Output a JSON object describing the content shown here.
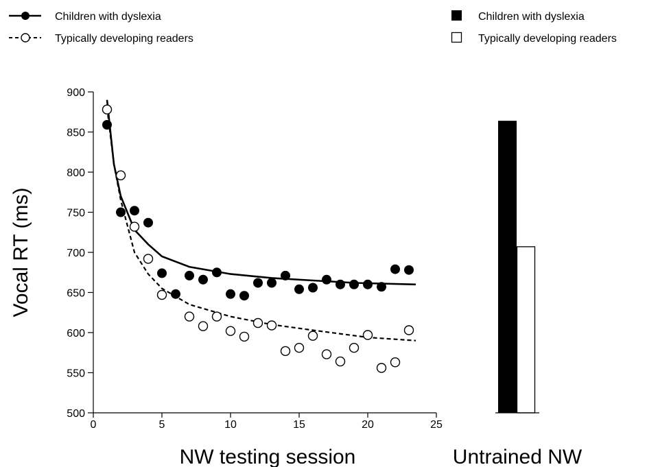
{
  "legend_left": [
    {
      "label": "Children with dyslexia",
      "style": "solid-filled"
    },
    {
      "label": "Typically developing readers",
      "style": "dashed-open"
    }
  ],
  "legend_right": [
    {
      "label": "Children with dyslexia",
      "style": "filled-box"
    },
    {
      "label": "Typically developing readers",
      "style": "open-box"
    }
  ],
  "chart_data": [
    {
      "type": "scatter",
      "xlabel": "NW testing session",
      "ylabel": "Vocal RT (ms)",
      "xlim": [
        0,
        25
      ],
      "ylim": [
        500,
        900
      ],
      "xticks": [
        0,
        5,
        10,
        15,
        20,
        25
      ],
      "yticks": [
        500,
        550,
        600,
        650,
        700,
        750,
        800,
        850,
        900
      ],
      "grid": false,
      "legend_position": "top-left",
      "series": [
        {
          "name": "Children with dyslexia",
          "marker": "filled-circle",
          "line": "solid",
          "color": "#000000",
          "points": [
            [
              1,
              859
            ],
            [
              2,
              750
            ],
            [
              3,
              752
            ],
            [
              4,
              737
            ],
            [
              5,
              674
            ],
            [
              6,
              648
            ],
            [
              7,
              671
            ],
            [
              8,
              666
            ],
            [
              9,
              675
            ],
            [
              10,
              648
            ],
            [
              11,
              646
            ],
            [
              12,
              662
            ],
            [
              13,
              662
            ],
            [
              14,
              671
            ],
            [
              15,
              654
            ],
            [
              16,
              656
            ],
            [
              17,
              666
            ],
            [
              18,
              660
            ],
            [
              19,
              660
            ],
            [
              20,
              660
            ],
            [
              21,
              657
            ],
            [
              22,
              679
            ],
            [
              23,
              678
            ]
          ],
          "fit": [
            [
              1,
              890
            ],
            [
              1.5,
              810
            ],
            [
              2,
              770
            ],
            [
              3,
              728
            ],
            [
              4,
              710
            ],
            [
              5,
              695
            ],
            [
              7,
              682
            ],
            [
              10,
              673
            ],
            [
              13,
              668
            ],
            [
              16,
              665
            ],
            [
              19,
              662
            ],
            [
              23.5,
              660
            ]
          ]
        },
        {
          "name": "Typically developing readers",
          "marker": "open-circle",
          "line": "dashed",
          "color": "#000000",
          "points": [
            [
              1,
              878
            ],
            [
              2,
              796
            ],
            [
              3,
              732
            ],
            [
              4,
              692
            ],
            [
              5,
              647
            ],
            [
              7,
              620
            ],
            [
              8,
              608
            ],
            [
              9,
              620
            ],
            [
              10,
              602
            ],
            [
              11,
              595
            ],
            [
              12,
              612
            ],
            [
              13,
              609
            ],
            [
              14,
              577
            ],
            [
              15,
              581
            ],
            [
              16,
              596
            ],
            [
              17,
              573
            ],
            [
              18,
              564
            ],
            [
              19,
              581
            ],
            [
              20,
              597
            ],
            [
              21,
              556
            ],
            [
              22,
              563
            ],
            [
              23,
              603
            ]
          ],
          "fit": [
            [
              1,
              880
            ],
            [
              1.5,
              810
            ],
            [
              2,
              765
            ],
            [
              3,
              700
            ],
            [
              4,
              673
            ],
            [
              5,
              655
            ],
            [
              7,
              635
            ],
            [
              10,
              620
            ],
            [
              13,
              610
            ],
            [
              16,
              603
            ],
            [
              20,
              594
            ],
            [
              23.5,
              590
            ]
          ]
        }
      ]
    },
    {
      "type": "bar",
      "xlabel": "Untrained NW",
      "ylabel": "",
      "ylim": [
        500,
        900
      ],
      "legend_position": "top-right",
      "categories": [
        "Untrained NW"
      ],
      "series": [
        {
          "name": "Children with dyslexia",
          "values": [
            864
          ],
          "color": "#000000"
        },
        {
          "name": "Typically developing readers",
          "values": [
            707
          ],
          "color": "#ffffff"
        }
      ]
    }
  ]
}
